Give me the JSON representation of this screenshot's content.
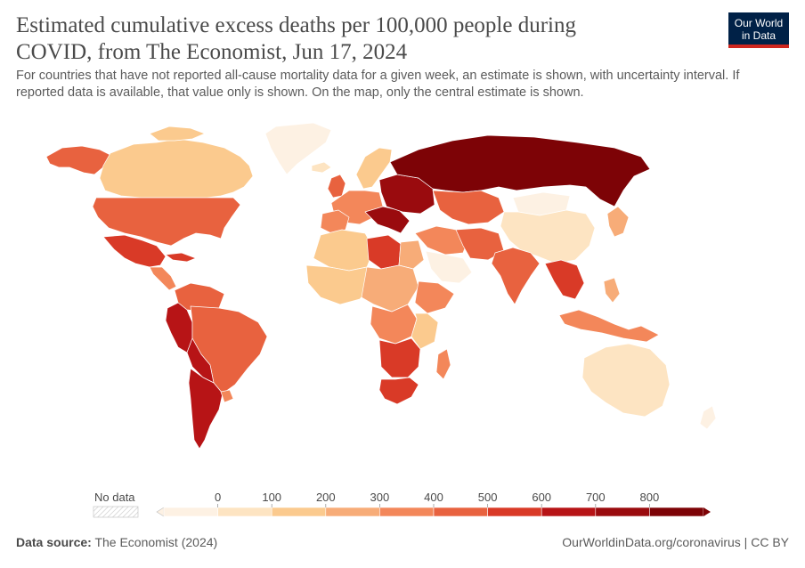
{
  "header": {
    "title": "Estimated cumulative excess deaths per 100,000 people during COVID, from The Economist, Jun 17, 2024",
    "subtitle": "For countries that have not reported all-cause mortality data for a given week, an estimate is shown, with uncertainty interval. If reported data is available, that value only is shown. On the map, only the central estimate is shown."
  },
  "logo": {
    "line1": "Our World",
    "line2": "in Data"
  },
  "legend": {
    "no_data_label": "No data",
    "ticks": [
      "0",
      "100",
      "200",
      "300",
      "400",
      "500",
      "600",
      "700",
      "800"
    ],
    "colors": [
      "#fdf1e3",
      "#fde4c2",
      "#fbca8e",
      "#f7ac78",
      "#f3875a",
      "#e8623f",
      "#d93a27",
      "#b71416",
      "#9a0b0e",
      "#7d0306"
    ]
  },
  "map_legend_scale": {
    "min": 0,
    "max": 800,
    "step": 100
  },
  "colors": {
    "russia": "#7d0306",
    "eastern_europe": "#9a0b0e",
    "peru": "#b71416",
    "bolivia": "#b71416",
    "mexico": "#d93a27",
    "brazil": "#e8623f",
    "usa": "#e8623f",
    "canada": "#fbca8e",
    "greenland": "#fdf1e3",
    "south_africa": "#d93a27",
    "australia": "#fde4c2",
    "china": "#fde4c2",
    "india": "#e8623f",
    "saudi_arabia": "#fdf1e3",
    "argentina": "#b71416",
    "africa_default": "#fbca8e",
    "western_europe": "#f3875a"
  },
  "footer": {
    "source_label": "Data source:",
    "source_value": "The Economist (2024)",
    "link": "OurWorldinData.org/coronavirus | CC BY"
  }
}
